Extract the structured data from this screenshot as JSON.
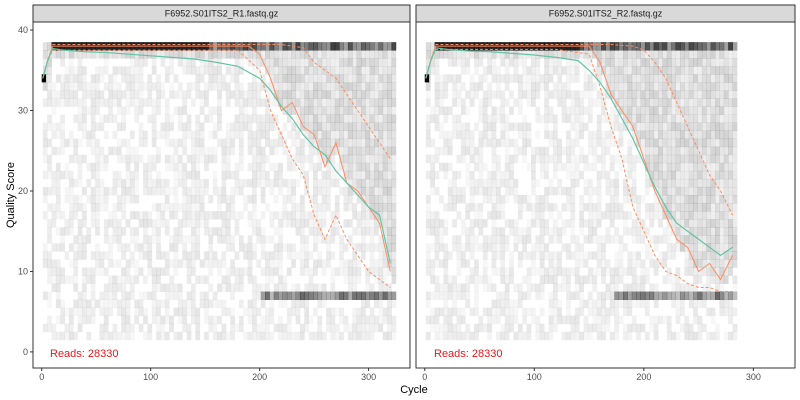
{
  "chart_data": {
    "type": "line",
    "xlabel": "Cycle",
    "ylabel": "Quality Score",
    "xlim": [
      -8,
      338
    ],
    "ylim": [
      -2,
      41
    ],
    "x_ticks": [
      0,
      100,
      200,
      300
    ],
    "y_ticks": [
      0,
      10,
      20,
      30,
      40
    ],
    "grid": false,
    "colors": {
      "mean": "#66c2a5",
      "median": "#fc8d62",
      "quartile": "#fc8d62",
      "reads_label": "#e41a1c",
      "heatmap": "#000000"
    },
    "panels": [
      {
        "title": "F6952.S01ITS2_R1.fastq.gz",
        "reads_label": "Reads:  28330",
        "max_cycle": 321,
        "mean": {
          "x": [
            1,
            5,
            10,
            20,
            40,
            60,
            80,
            100,
            120,
            140,
            160,
            180,
            200,
            210,
            220,
            230,
            240,
            250,
            260,
            270,
            280,
            290,
            300,
            310,
            320
          ],
          "y": [
            34,
            36,
            37.7,
            37.5,
            37.3,
            37.2,
            37.0,
            36.8,
            36.6,
            36.4,
            36.0,
            35.5,
            34.0,
            32.5,
            30.5,
            29.0,
            27.0,
            25.5,
            24.5,
            22.5,
            21.0,
            19.5,
            18.0,
            17.0,
            11.0
          ]
        },
        "median": {
          "x": [
            1,
            5,
            10,
            50,
            100,
            150,
            190,
            200,
            210,
            220,
            230,
            240,
            250,
            260,
            270,
            280,
            290,
            300,
            310,
            320
          ],
          "y": [
            34,
            36,
            38,
            38,
            38,
            38,
            38,
            37,
            34,
            30,
            31,
            28,
            27,
            23,
            26,
            21,
            20,
            18,
            16,
            10
          ]
        },
        "q25": {
          "x": [
            1,
            5,
            10,
            100,
            180,
            200,
            210,
            220,
            230,
            240,
            250,
            260,
            270,
            280,
            290,
            300,
            310,
            320
          ],
          "y": [
            34,
            36,
            37.5,
            37.5,
            37.5,
            35.0,
            30.0,
            27.0,
            24.0,
            22.0,
            17.0,
            14.0,
            17.0,
            14.0,
            12.0,
            10.0,
            9.0,
            8.0
          ]
        },
        "q75": {
          "x": [
            1,
            5,
            10,
            100,
            190,
            200,
            220,
            240,
            250,
            260,
            270,
            280,
            290,
            300,
            310,
            320
          ],
          "y": [
            34,
            36,
            38.2,
            38.2,
            38.2,
            38.2,
            38.2,
            37.8,
            36.0,
            35.0,
            34.0,
            32.0,
            30.0,
            28.0,
            26.0,
            24.0
          ]
        }
      },
      {
        "title": "F6952.S01ITS2_R2.fastq.gz",
        "reads_label": "Reads:  28330",
        "max_cycle": 281,
        "mean": {
          "x": [
            1,
            5,
            10,
            20,
            40,
            60,
            80,
            100,
            120,
            140,
            150,
            160,
            170,
            180,
            190,
            200,
            210,
            220,
            230,
            240,
            250,
            260,
            270,
            281
          ],
          "y": [
            34,
            36,
            37.8,
            37.6,
            37.4,
            37.3,
            37.1,
            36.9,
            36.6,
            36.2,
            35.0,
            33.5,
            31.5,
            29.0,
            26.5,
            23.5,
            20.5,
            18.0,
            16.0,
            15.0,
            14.0,
            13.0,
            12.0,
            13.0
          ]
        },
        "median": {
          "x": [
            1,
            5,
            10,
            60,
            120,
            150,
            160,
            170,
            180,
            190,
            200,
            210,
            220,
            230,
            240,
            250,
            260,
            270,
            281
          ],
          "y": [
            34,
            36,
            38,
            38,
            38,
            38,
            36,
            32,
            30,
            28,
            24,
            20,
            17,
            14,
            13,
            10,
            11,
            9,
            12
          ]
        },
        "q25": {
          "x": [
            1,
            5,
            10,
            120,
            150,
            160,
            170,
            180,
            190,
            200,
            210,
            220,
            230,
            240,
            250,
            260,
            270,
            281
          ],
          "y": [
            34,
            36,
            37.6,
            37.6,
            37.0,
            33.0,
            28.0,
            24.0,
            18.0,
            15.0,
            12.0,
            10.0,
            9.5,
            8.5,
            8.0,
            8.0,
            7.5,
            7.5
          ]
        },
        "q75": {
          "x": [
            1,
            5,
            10,
            150,
            170,
            190,
            200,
            210,
            220,
            230,
            240,
            250,
            260,
            270,
            281
          ],
          "y": [
            34,
            36,
            38.2,
            38.2,
            38.2,
            38.0,
            37.5,
            36.0,
            34.0,
            31.0,
            28.0,
            25.0,
            22.0,
            20.0,
            17.0
          ]
        }
      }
    ]
  }
}
